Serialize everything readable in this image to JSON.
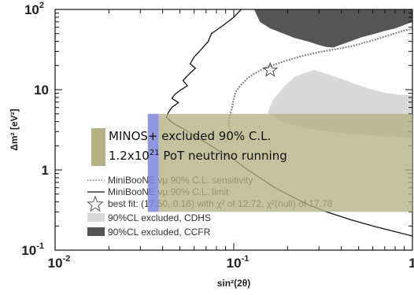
{
  "chart_data": {
    "type": "area",
    "xlabel": "sin²(2θ)",
    "ylabel": "Δm² [eV²]",
    "xscale": "log",
    "yscale": "log",
    "xlim": [
      0.01,
      1
    ],
    "ylim": [
      0.1,
      100
    ],
    "x_ticks": [
      {
        "v": 0.01,
        "base": "10",
        "exp": "-2"
      },
      {
        "v": 0.1,
        "base": "10",
        "exp": "-1"
      },
      {
        "v": 1,
        "base": "1",
        "exp": ""
      }
    ],
    "y_ticks": [
      {
        "v": 0.1,
        "base": "10",
        "exp": "-1"
      },
      {
        "v": 1,
        "base": "1",
        "exp": ""
      },
      {
        "v": 10,
        "base": "10",
        "exp": ""
      },
      {
        "v": 100,
        "base": "10",
        "exp": "2"
      }
    ],
    "minos_annotation": {
      "line1": "MINOS+ excluded 90% C.L.",
      "line2_a": "1.2x10",
      "line2_exp": "21",
      "line2_b": " PoT neutrino running",
      "color": "#b5b184",
      "band_color": "#7f86d8",
      "region": {
        "x_range": [
          0.033,
          1
        ],
        "dm2_range": [
          0.3,
          5
        ]
      },
      "band_x": [
        0.033,
        0.038
      ]
    },
    "legend": [
      {
        "symbol": "dotted",
        "text": "MiniBooNE νμ 90% C.L. sensitivity"
      },
      {
        "symbol": "solid",
        "text": "MiniBooNE νμ 90% C.L. limit"
      },
      {
        "symbol": "star",
        "text": "best fit: (17.50, 0.16) with χ² of  12.72, χ²(null) of 17.78"
      },
      {
        "symbol": "lightbox",
        "text": "90%CL excluded, CDHS"
      },
      {
        "symbol": "darkbox",
        "text": "90%CL excluded, CCFR"
      }
    ],
    "colors": {
      "cdhs": "#d9d9d9",
      "ccfr": "#555555",
      "limit": "#111111",
      "sensitivity": "#888888"
    },
    "best_fit": {
      "x": 0.16,
      "y": 17.5
    },
    "series": [
      {
        "name": "90%CL excluded, CCFR",
        "kind": "region",
        "points": [
          [
            0.13,
            100
          ],
          [
            0.14,
            70
          ],
          [
            0.16,
            58
          ],
          [
            0.19,
            50
          ],
          [
            0.22,
            44
          ],
          [
            0.26,
            40
          ],
          [
            0.3,
            36
          ],
          [
            0.33,
            34
          ],
          [
            0.36,
            33.5
          ],
          [
            0.42,
            38
          ],
          [
            0.52,
            45
          ],
          [
            0.6,
            49
          ],
          [
            0.7,
            54
          ],
          [
            0.8,
            58
          ],
          [
            0.9,
            64
          ],
          [
            1,
            70
          ],
          [
            1,
            100
          ]
        ]
      },
      {
        "name": "90%CL excluded, CDHS",
        "kind": "region",
        "points": [
          [
            1,
            8.5
          ],
          [
            0.82,
            8.7
          ],
          [
            0.7,
            9.2
          ],
          [
            0.58,
            10.2
          ],
          [
            0.48,
            11.7
          ],
          [
            0.4,
            13.7
          ],
          [
            0.33,
            15.8
          ],
          [
            0.28,
            17.6
          ],
          [
            0.22,
            14.6
          ],
          [
            0.19,
            10.8
          ],
          [
            0.165,
            7.3
          ],
          [
            0.155,
            5.2
          ],
          [
            0.19,
            3.9
          ],
          [
            0.26,
            3.3
          ],
          [
            0.34,
            3
          ],
          [
            0.44,
            2.8
          ],
          [
            0.6,
            2.7
          ],
          [
            0.8,
            2.6
          ],
          [
            1,
            2.5
          ]
        ]
      },
      {
        "name": "MiniBooNE νμ 90% C.L. limit",
        "kind": "line",
        "points": [
          [
            0.11,
            100
          ],
          [
            0.1,
            80
          ],
          [
            0.087,
            63
          ],
          [
            0.075,
            50
          ],
          [
            0.072,
            40
          ],
          [
            0.066,
            32
          ],
          [
            0.06,
            25.5
          ],
          [
            0.057,
            21
          ],
          [
            0.061,
            18.5
          ],
          [
            0.056,
            15.5
          ],
          [
            0.052,
            13
          ],
          [
            0.055,
            11.2
          ],
          [
            0.05,
            9.8
          ],
          [
            0.047,
            8.8
          ],
          [
            0.045,
            7.8
          ],
          [
            0.049,
            6.9
          ],
          [
            0.045,
            6
          ],
          [
            0.043,
            5.2
          ],
          [
            0.042,
            4.5
          ],
          [
            0.046,
            3.8
          ],
          [
            0.053,
            3.2
          ],
          [
            0.063,
            2.5
          ],
          [
            0.072,
            2.1
          ],
          [
            0.087,
            1.6
          ],
          [
            0.1,
            1.35
          ],
          [
            0.12,
            1
          ],
          [
            0.14,
            0.8
          ],
          [
            0.17,
            0.6
          ],
          [
            0.21,
            0.47
          ],
          [
            0.26,
            0.37
          ],
          [
            0.33,
            0.3
          ],
          [
            0.45,
            0.24
          ],
          [
            0.6,
            0.2
          ],
          [
            0.8,
            0.17
          ],
          [
            1,
            0.15
          ]
        ]
      },
      {
        "name": "MiniBooNE νμ 90% C.L. sensitivity",
        "kind": "line",
        "points": [
          [
            0.09,
            2.2
          ],
          [
            0.095,
            3
          ],
          [
            0.094,
            4.3
          ],
          [
            0.098,
            6
          ],
          [
            0.1,
            7.8
          ],
          [
            0.103,
            9.5
          ],
          [
            0.11,
            11.5
          ],
          [
            0.12,
            14
          ],
          [
            0.13,
            15.8
          ],
          [
            0.15,
            18.8
          ],
          [
            0.17,
            20.6
          ],
          [
            0.2,
            23.3
          ],
          [
            0.24,
            26.2
          ],
          [
            0.3,
            29.5
          ],
          [
            0.37,
            31.9
          ],
          [
            0.45,
            34.5
          ],
          [
            0.55,
            39
          ],
          [
            0.66,
            44
          ],
          [
            0.78,
            49.5
          ],
          [
            0.88,
            54
          ],
          [
            1,
            57
          ]
        ]
      }
    ]
  }
}
